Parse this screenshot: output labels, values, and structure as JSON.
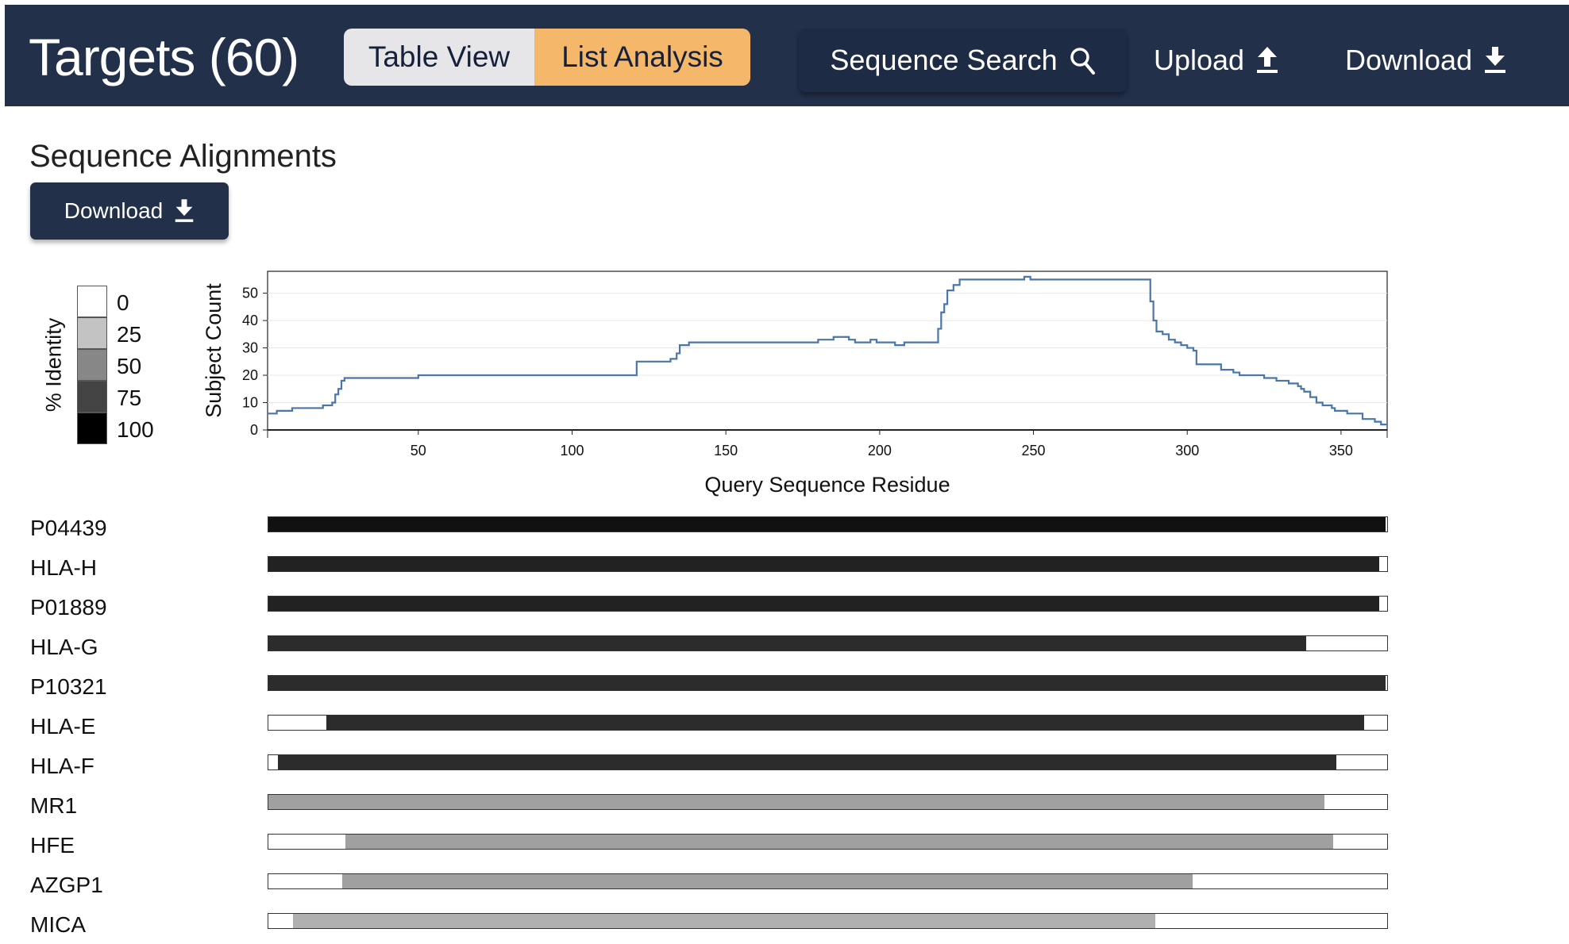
{
  "header": {
    "title": "Targets (60)",
    "view_toggle": {
      "table_label": "Table View",
      "list_label": "List Analysis",
      "active": "List Analysis"
    },
    "sequence_search_label": "Sequence Search",
    "upload_label": "Upload",
    "download_label": "Download"
  },
  "section": {
    "title": "Sequence Alignments",
    "download_label": "Download"
  },
  "legend": {
    "title": "% Identity",
    "items": [
      {
        "label": "0",
        "color": "#ffffff"
      },
      {
        "label": "25",
        "color": "#c3c3c3"
      },
      {
        "label": "50",
        "color": "#878787"
      },
      {
        "label": "75",
        "color": "#444444"
      },
      {
        "label": "100",
        "color": "#000000"
      }
    ]
  },
  "chart_data": {
    "type": "line",
    "xlabel": "Query Sequence Residue",
    "ylabel": "Subject Count",
    "xlim": [
      1,
      365
    ],
    "ylim": [
      0,
      58
    ],
    "xticks": [
      50,
      100,
      150,
      200,
      250,
      300,
      350
    ],
    "yticks": [
      0,
      10,
      20,
      30,
      40,
      50
    ],
    "grid": "horizontal",
    "line_color": "#4a76a8",
    "series": [
      {
        "step": true,
        "x": [
          1,
          4,
          9,
          19,
          22,
          23,
          24,
          25,
          26,
          50,
          120,
          121,
          132,
          134,
          135,
          138,
          180,
          185,
          187,
          190,
          192,
          197,
          199,
          205,
          208,
          219,
          220,
          221,
          222,
          224,
          226,
          247,
          249,
          287,
          288,
          289,
          290,
          292,
          294,
          296,
          298,
          300,
          302,
          303,
          311,
          315,
          317,
          321,
          325,
          329,
          330,
          333,
          336,
          337,
          338,
          340,
          342,
          344,
          346,
          347,
          348,
          350,
          352,
          357,
          361,
          363,
          365
        ],
        "y": [
          6,
          7,
          8,
          9,
          10,
          13,
          15,
          18,
          19,
          20,
          20,
          25,
          26,
          28,
          31,
          32,
          33,
          34,
          34,
          33,
          32,
          33,
          32,
          31,
          32,
          37,
          43,
          46,
          51,
          53,
          55,
          56,
          55,
          55,
          47,
          40,
          36,
          35,
          33,
          32,
          31,
          30,
          29,
          24,
          22,
          21,
          20,
          20,
          19,
          18,
          18,
          17,
          16,
          15,
          14,
          12,
          10,
          9,
          9,
          8,
          7,
          7,
          6,
          4,
          3,
          2,
          2
        ]
      }
    ]
  },
  "alignments": {
    "query_length": 365,
    "rows": [
      {
        "name": "P04439",
        "start": 1,
        "end": 364,
        "color": "#111111"
      },
      {
        "name": "HLA-H",
        "start": 1,
        "end": 362,
        "color": "#222222"
      },
      {
        "name": "P01889",
        "start": 1,
        "end": 362,
        "color": "#222222"
      },
      {
        "name": "HLA-G",
        "start": 1,
        "end": 338,
        "color": "#2c2c2c"
      },
      {
        "name": "P10321",
        "start": 1,
        "end": 364,
        "color": "#2c2c2c"
      },
      {
        "name": "HLA-E",
        "start": 20,
        "end": 357,
        "color": "#2c2c2c"
      },
      {
        "name": "HLA-F",
        "start": 4,
        "end": 348,
        "color": "#2c2c2c"
      },
      {
        "name": "MR1",
        "start": 1,
        "end": 344,
        "color": "#a0a0a0"
      },
      {
        "name": "HFE",
        "start": 26,
        "end": 347,
        "color": "#a0a0a0"
      },
      {
        "name": "AZGP1",
        "start": 25,
        "end": 301,
        "color": "#a0a0a0"
      },
      {
        "name": "MICA",
        "start": 9,
        "end": 289,
        "color": "#b0b0b0"
      }
    ]
  }
}
